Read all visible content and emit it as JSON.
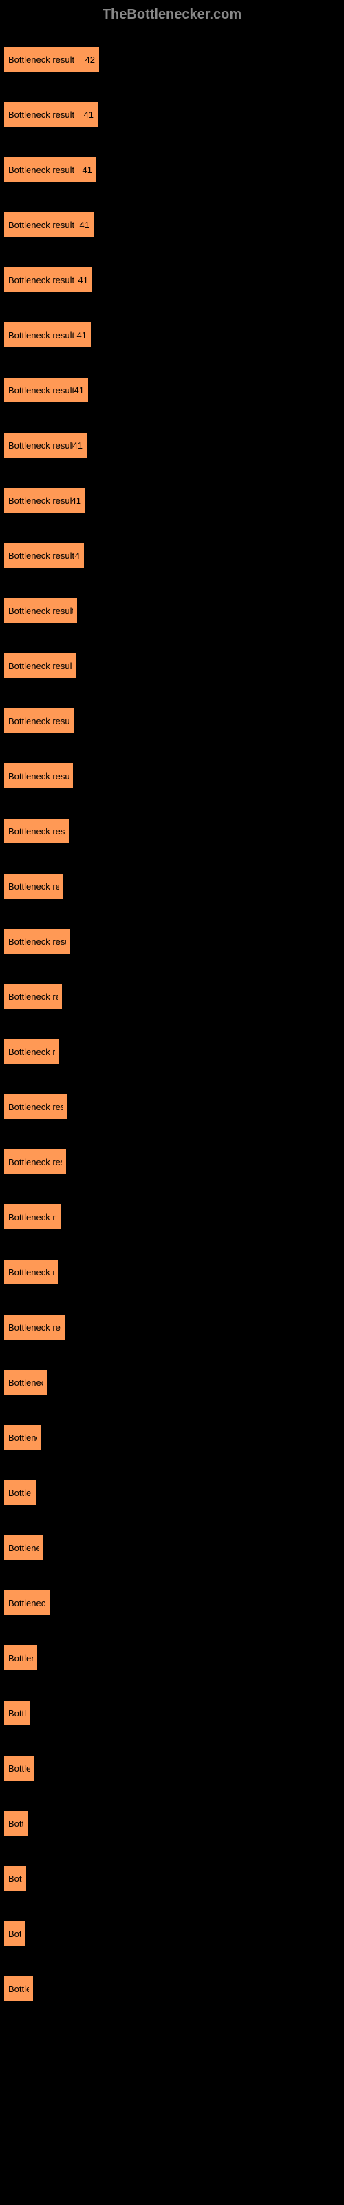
{
  "header": "TheBottlenecker.com",
  "chart": {
    "type": "bar",
    "bar_color": "#ff9955",
    "background_color": "#000000",
    "text_color": "#000000",
    "header_color": "#888888",
    "max_width": 140,
    "bars": [
      {
        "label": "Bottleneck result",
        "value": "42",
        "width": 140
      },
      {
        "label": "Bottleneck result",
        "value": "41",
        "width": 138
      },
      {
        "label": "Bottleneck result",
        "value": "41",
        "width": 136
      },
      {
        "label": "Bottleneck result",
        "value": "41",
        "width": 132
      },
      {
        "label": "Bottleneck result",
        "value": "41",
        "width": 130
      },
      {
        "label": "Bottleneck result",
        "value": "41",
        "width": 128
      },
      {
        "label": "Bottleneck result",
        "value": "41",
        "width": 124
      },
      {
        "label": "Bottleneck result",
        "value": "41",
        "width": 122
      },
      {
        "label": "Bottleneck result",
        "value": "41",
        "width": 120
      },
      {
        "label": "Bottleneck result",
        "value": "4",
        "width": 118
      },
      {
        "label": "Bottleneck result",
        "value": "",
        "width": 108
      },
      {
        "label": "Bottleneck result",
        "value": "",
        "width": 106
      },
      {
        "label": "Bottleneck result",
        "value": "",
        "width": 104
      },
      {
        "label": "Bottleneck result",
        "value": "",
        "width": 102
      },
      {
        "label": "Bottleneck result",
        "value": "",
        "width": 96
      },
      {
        "label": "Bottleneck result",
        "value": "",
        "width": 88
      },
      {
        "label": "Bottleneck result",
        "value": "",
        "width": 98
      },
      {
        "label": "Bottleneck result",
        "value": "",
        "width": 86
      },
      {
        "label": "Bottleneck result",
        "value": "",
        "width": 82
      },
      {
        "label": "Bottleneck result",
        "value": "",
        "width": 94
      },
      {
        "label": "Bottleneck result",
        "value": "",
        "width": 92
      },
      {
        "label": "Bottleneck result",
        "value": "",
        "width": 84
      },
      {
        "label": "Bottleneck resu",
        "value": "",
        "width": 80
      },
      {
        "label": "Bottleneck result",
        "value": "",
        "width": 90
      },
      {
        "label": "Bottleneck r",
        "value": "",
        "width": 64
      },
      {
        "label": "Bottleneck",
        "value": "",
        "width": 56
      },
      {
        "label": "Bottlene",
        "value": "",
        "width": 48
      },
      {
        "label": "Bottleneck",
        "value": "",
        "width": 58
      },
      {
        "label": "Bottleneck re",
        "value": "",
        "width": 68
      },
      {
        "label": "Bottlene",
        "value": "",
        "width": 50
      },
      {
        "label": "Bottler",
        "value": "",
        "width": 40
      },
      {
        "label": "Bottlene",
        "value": "",
        "width": 46
      },
      {
        "label": "Bottle",
        "value": "",
        "width": 36
      },
      {
        "label": "Bottle",
        "value": "",
        "width": 34
      },
      {
        "label": "Bottle",
        "value": "",
        "width": 32
      },
      {
        "label": "Bottlene",
        "value": "",
        "width": 44
      }
    ]
  }
}
